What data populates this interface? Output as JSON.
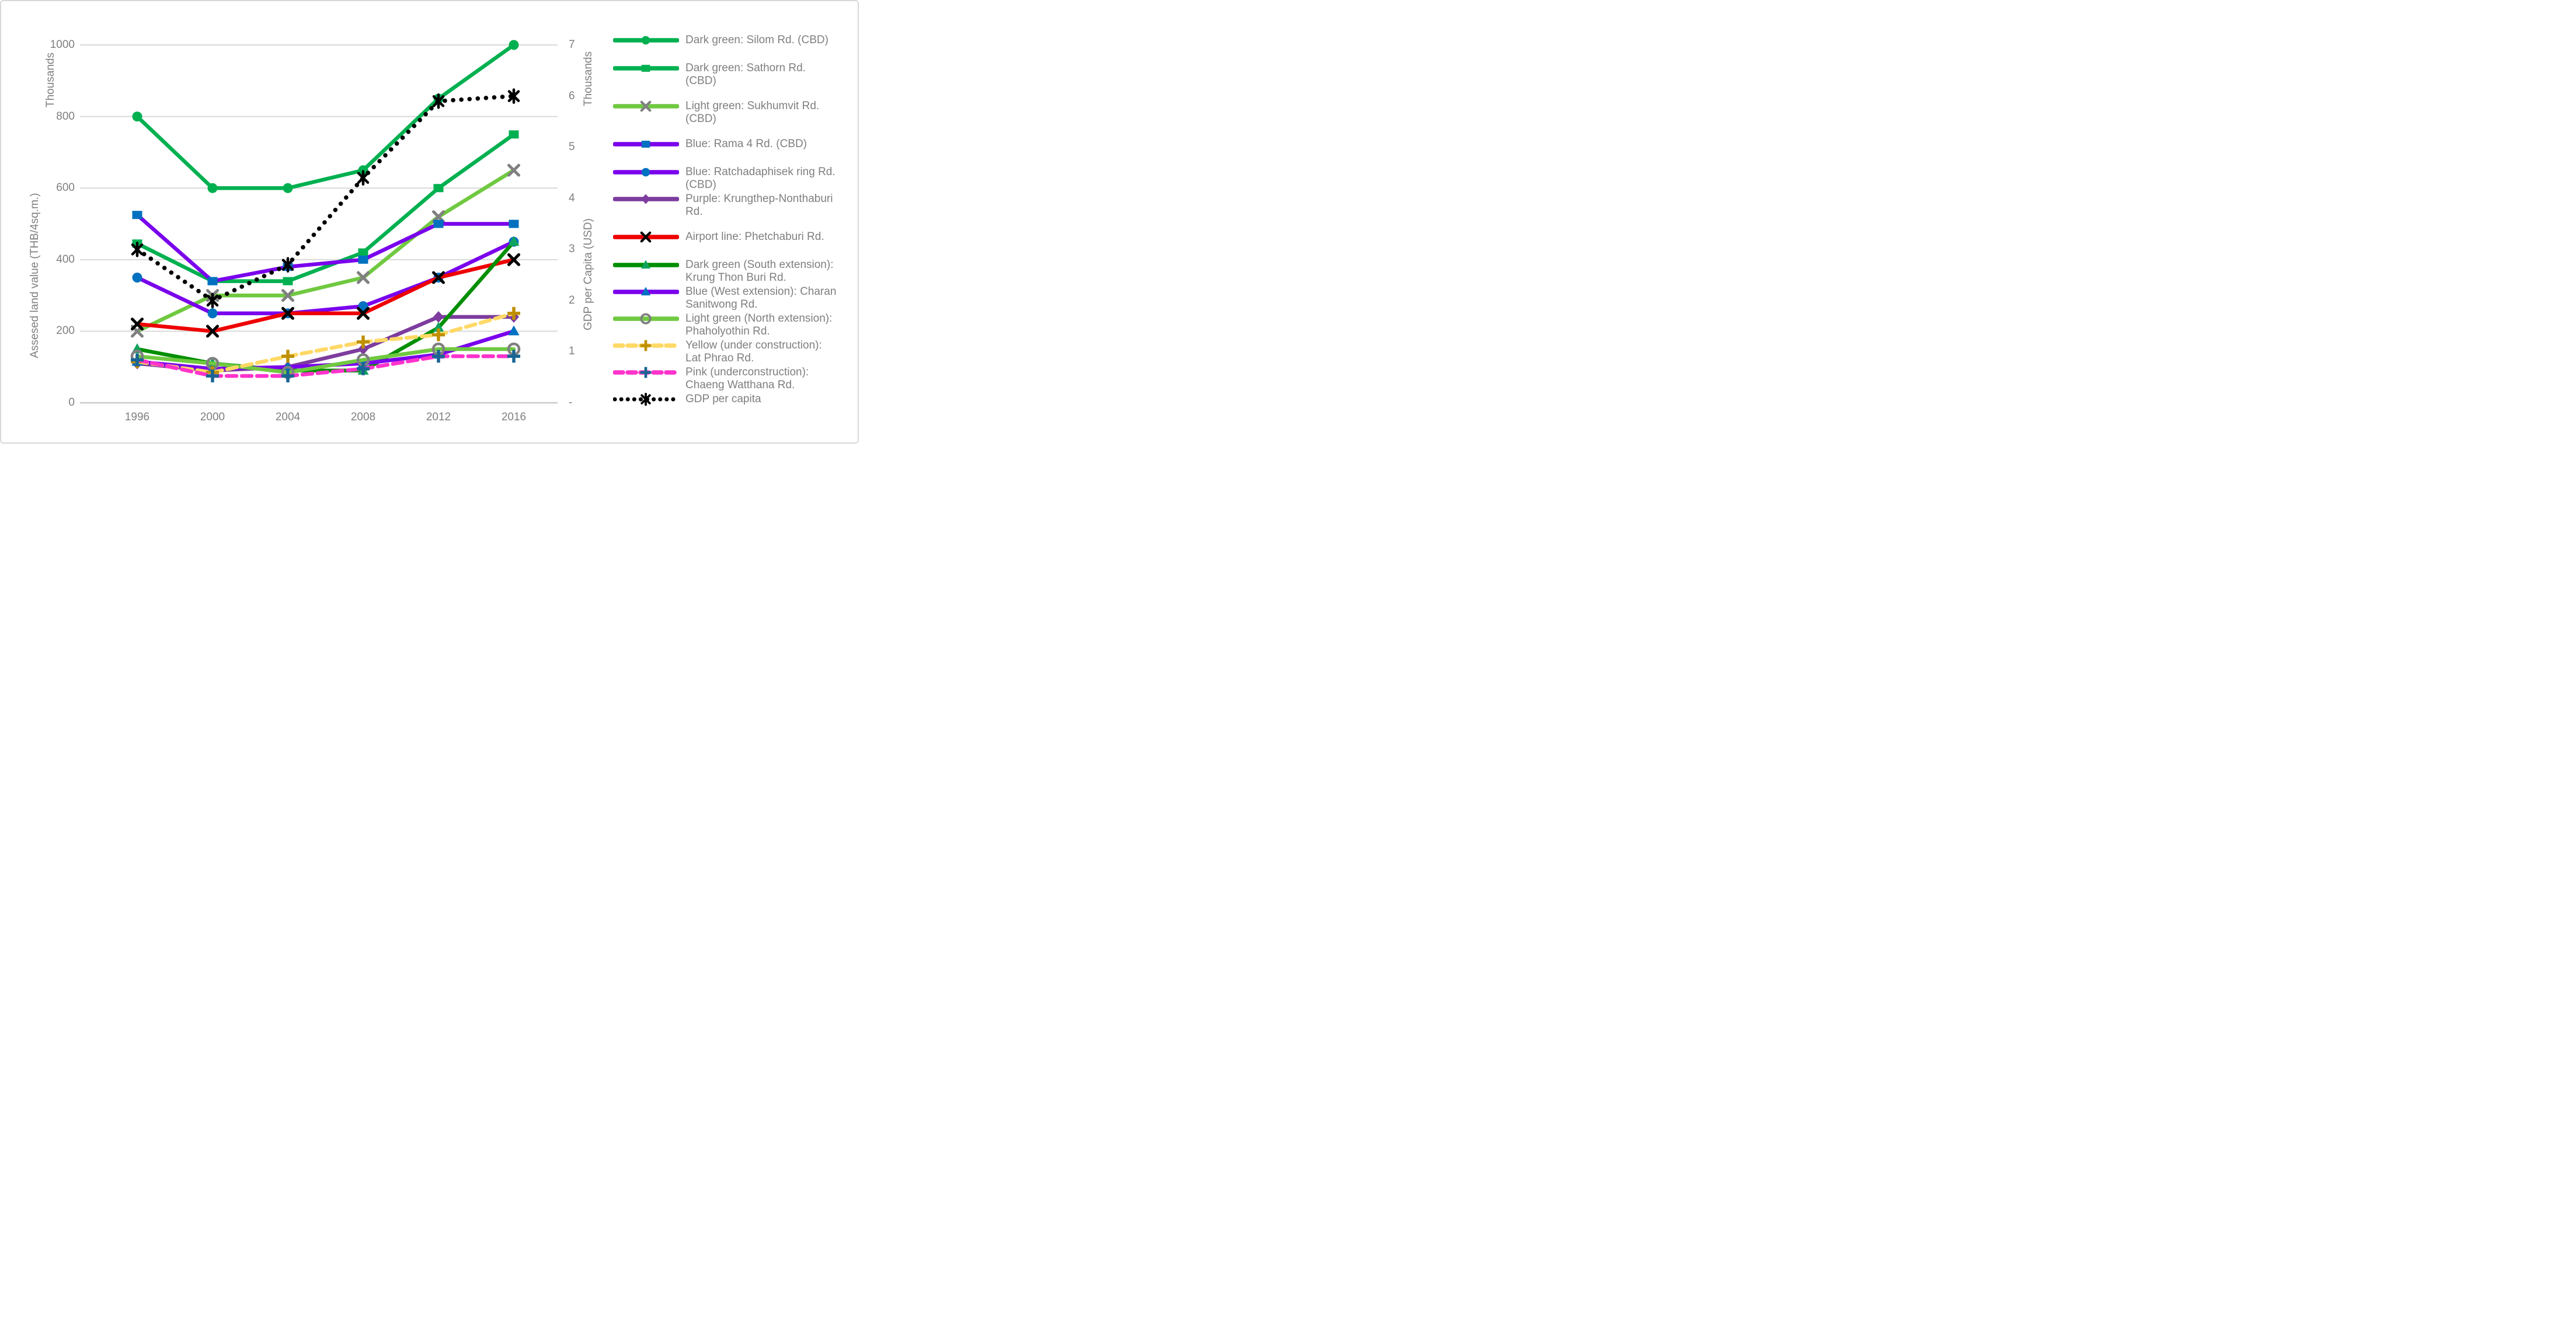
{
  "chart": {
    "left_unit": "Thousands",
    "left_title": "Assesed land value (THB/4sq.m.)",
    "right_unit": "Thousands",
    "right_title": "GDP per Capita (USD)"
  },
  "chart_data": {
    "type": "line",
    "title": "",
    "categories": [
      "1996",
      "2000",
      "2004",
      "2008",
      "2012",
      "2016"
    ],
    "left_axis": {
      "unit": "Thousands",
      "label": "Assesed land value (THB/4sq.m.)",
      "ticks": [
        "0",
        "200",
        "400",
        "600",
        "800",
        "1000"
      ],
      "range": [
        0,
        1000
      ]
    },
    "right_axis": {
      "unit": "Thousands",
      "label": "GDP per Capita (USD)",
      "ticks": [
        "-",
        "1",
        "2",
        "3",
        "4",
        "5",
        "6",
        "7"
      ],
      "range": [
        0,
        7
      ]
    },
    "grid": true,
    "legend_position": "right",
    "series": [
      {
        "name": "Dark green: Silom Rd. (CBD)",
        "axis": "left",
        "color": "#00B050",
        "line": "solid",
        "marker": "circle",
        "marker_color": "#00B050",
        "values": [
          800,
          600,
          600,
          650,
          850,
          1000
        ]
      },
      {
        "name": "Dark green: Sathorn Rd. (CBD)",
        "axis": "left",
        "color": "#00B050",
        "line": "solid",
        "marker": "square",
        "marker_color": "#00B050",
        "values": [
          445,
          340,
          340,
          420,
          600,
          750
        ]
      },
      {
        "name": "Light green: Sukhumvit Rd. (CBD)",
        "axis": "left",
        "color": "#70C940",
        "line": "solid",
        "marker": "x",
        "marker_color": "#808080",
        "values": [
          200,
          300,
          300,
          350,
          520,
          650
        ]
      },
      {
        "name": "Blue: Rama 4 Rd. (CBD)",
        "axis": "left",
        "color": "#7A00EC",
        "line": "solid",
        "marker": "square",
        "marker_color": "#0070C0",
        "values": [
          525,
          340,
          380,
          400,
          500,
          500
        ]
      },
      {
        "name": "Blue: Ratchadaphisek ring Rd. (CBD)",
        "axis": "left",
        "color": "#7A00EC",
        "line": "solid",
        "marker": "circle",
        "marker_color": "#0070C0",
        "values": [
          350,
          250,
          250,
          270,
          350,
          450
        ]
      },
      {
        "name": "Purple: Krungthep-Nonthaburi Rd.",
        "axis": "left",
        "color": "#7D3C9E",
        "line": "solid",
        "marker": "diamond",
        "marker_color": "#7D3C9E",
        "values": [
          110,
          90,
          100,
          150,
          240,
          240
        ]
      },
      {
        "name": "Airport line: Phetchaburi Rd.",
        "axis": "left",
        "color": "#EE0000",
        "line": "solid",
        "marker": "x",
        "marker_color": "#000000",
        "values": [
          220,
          200,
          250,
          250,
          350,
          400
        ]
      },
      {
        "name": "Dark green (South extension): Krung Thon Buri Rd.",
        "axis": "left",
        "color": "#008F00",
        "line": "solid",
        "marker": "triangle",
        "marker_color": "#10A35D",
        "values": [
          150,
          110,
          90,
          90,
          210,
          450
        ]
      },
      {
        "name": "Blue (West extension): Charan Sanitwong Rd.",
        "axis": "left",
        "color": "#7A00EC",
        "line": "solid",
        "marker": "triangle",
        "marker_color": "#0070C0",
        "values": [
          115,
          95,
          100,
          110,
          135,
          200
        ]
      },
      {
        "name": "Light green (North extension): Phaholyothin Rd.",
        "axis": "left",
        "color": "#70C940",
        "line": "solid",
        "marker": "open-circle",
        "marker_color": "#808080",
        "values": [
          130,
          110,
          85,
          120,
          150,
          150
        ]
      },
      {
        "name": "Yellow (under construction): Lat Phrao Rd.",
        "axis": "left",
        "color": "#FFD966",
        "line": "dashed",
        "marker": "plus",
        "marker_color": "#BF8F00",
        "values": [
          115,
          85,
          130,
          170,
          190,
          250
        ]
      },
      {
        "name": "Pink (underconstruction): Chaeng Watthana Rd.",
        "axis": "left",
        "color": "#FF33CC",
        "line": "dashed",
        "marker": "plus",
        "marker_color": "#186593",
        "values": [
          120,
          75,
          75,
          95,
          130,
          130
        ]
      },
      {
        "name": "GDP per capita",
        "axis": "right",
        "color": "#000000",
        "line": "dotted",
        "marker": "asterisk",
        "marker_color": "#000000",
        "values": [
          3.0,
          2.0,
          2.7,
          4.4,
          5.9,
          6.0
        ]
      }
    ]
  }
}
